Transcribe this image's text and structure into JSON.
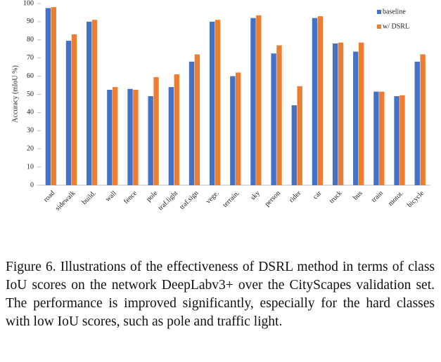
{
  "chart_data": {
    "type": "bar",
    "y_label": "Accuracy (mIoU %)",
    "categories": [
      "road",
      "sidewalk",
      "build.",
      "wall",
      "fence",
      "pole",
      "traf.light",
      "traf.sign",
      "vege.",
      "terrain.",
      "sky",
      "person",
      "rider",
      "car",
      "truck",
      "bus",
      "train",
      "motot.",
      "bicycle"
    ],
    "series": [
      {
        "name": "baseline",
        "color": "#4472c4",
        "values": [
          97.5,
          79.5,
          90,
          52.5,
          53,
          49,
          54,
          68,
          90,
          60,
          92,
          72.5,
          44,
          92,
          78,
          73.5,
          51.5,
          49,
          68
        ]
      },
      {
        "name": "w/ DSRL",
        "color": "#ed7d31",
        "values": [
          98,
          83,
          91,
          54,
          52.5,
          59.5,
          61,
          72,
          91,
          62,
          93.5,
          77,
          54.5,
          93,
          78.5,
          78.5,
          51.5,
          49.5,
          72
        ]
      }
    ],
    "ylim": [
      0,
      100
    ],
    "yticks": [
      0,
      10,
      20,
      30,
      40,
      50,
      60,
      70,
      80,
      90,
      100
    ],
    "legend": "top-right"
  },
  "caption": "Figure 6. Illustrations of the effectiveness of DSRL method in terms of class IoU scores on the network DeepLabv3+ over the CityScapes validation set. The performance is improved significantly, especially for the hard classes with low IoU scores, such as pole and traffic light."
}
